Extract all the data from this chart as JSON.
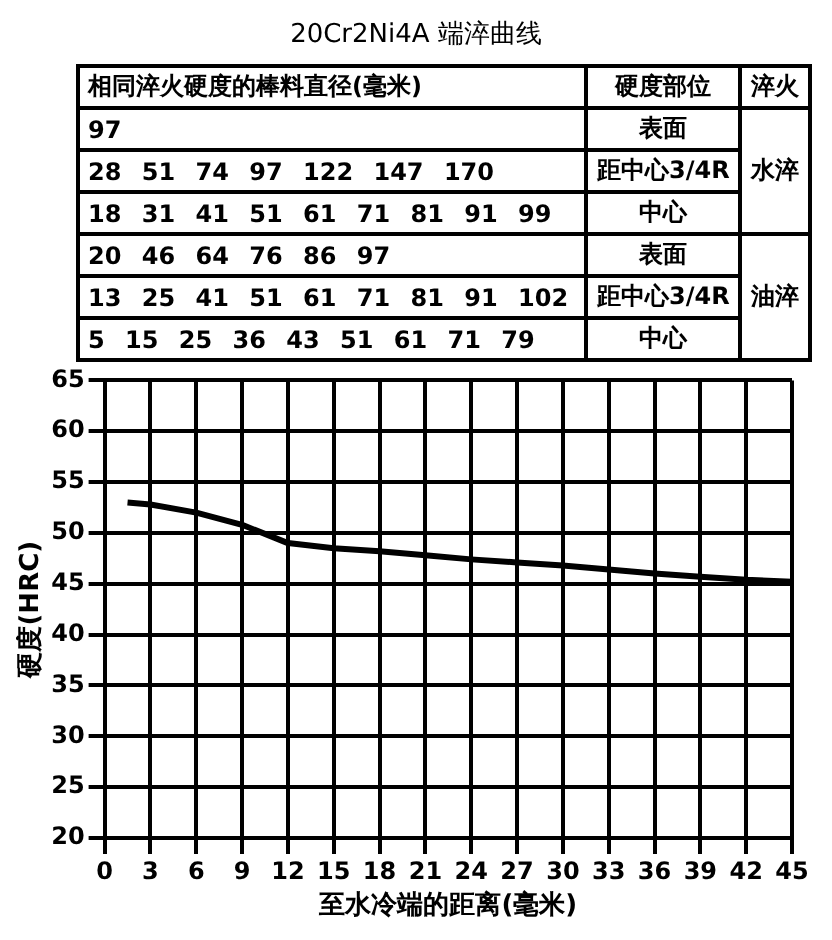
{
  "chart_data": {
    "type": "line",
    "title": "20Cr2Ni4A 端淬曲线",
    "xlabel": "至水冷端的距离(毫米)",
    "ylabel": "硬度(HRC)",
    "annotations": [
      "相同淬火硬度的棒料直径(毫米)",
      "硬度部位",
      "淬火",
      "97",
      "表面",
      "28 51 74 97 122 147 170",
      "距中心3/4R",
      "18 31 41 51 61 71 81 91 99",
      "中心",
      "水淬",
      "20 46 64 76 86 97",
      "表面",
      "13 25 41 51 61 71 81 91 102",
      "距中心3/4R",
      "5 15 25 36 43 51 61 71 79",
      "中心",
      "油淬"
    ],
    "series": [
      {
        "color": "#000000",
        "x": [
          1.5,
          3,
          6,
          9,
          12,
          15,
          18,
          21,
          24,
          27,
          30,
          33,
          36,
          39,
          42,
          45
        ],
        "values": [
          53,
          52.8,
          52,
          50.8,
          49,
          48.5,
          48.2,
          47.8,
          47.4,
          47.1,
          46.8,
          46.4,
          46,
          45.7,
          45.4,
          45.2
        ]
      }
    ],
    "xlim": [
      0,
      45
    ],
    "xticks": [
      0,
      3,
      6,
      9,
      12,
      15,
      18,
      21,
      24,
      27,
      30,
      33,
      36,
      39,
      42,
      45
    ],
    "ylim": [
      20,
      65
    ],
    "yticks": [
      20,
      25,
      30,
      35,
      40,
      45,
      50,
      55,
      60,
      65
    ],
    "grid": true,
    "legend": false,
    "marker": "none",
    "line_style": "solid"
  }
}
